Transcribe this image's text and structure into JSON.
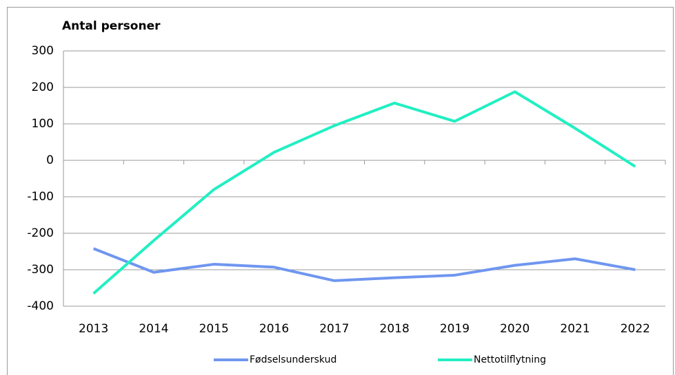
{
  "chart_data": {
    "type": "line",
    "y_axis_label": "Antal personer",
    "categories": [
      "2013",
      "2014",
      "2015",
      "2016",
      "2017",
      "2018",
      "2019",
      "2020",
      "2021",
      "2022"
    ],
    "series": [
      {
        "name": "Fødselsunderskud",
        "color": "#6f96ef",
        "values": [
          -242,
          -307,
          -285,
          -293,
          -330,
          -322,
          -315,
          -288,
          -270,
          -300
        ]
      },
      {
        "name": "Nettotilflytning",
        "color": "#22efc3",
        "values": [
          -365,
          -220,
          -80,
          22,
          95,
          157,
          107,
          188,
          88,
          -17
        ]
      }
    ],
    "ylim": [
      -400,
      300
    ],
    "yticks": [
      -400,
      -300,
      -200,
      -100,
      0,
      100,
      200,
      300
    ],
    "grid": true,
    "legend": "bottom"
  }
}
